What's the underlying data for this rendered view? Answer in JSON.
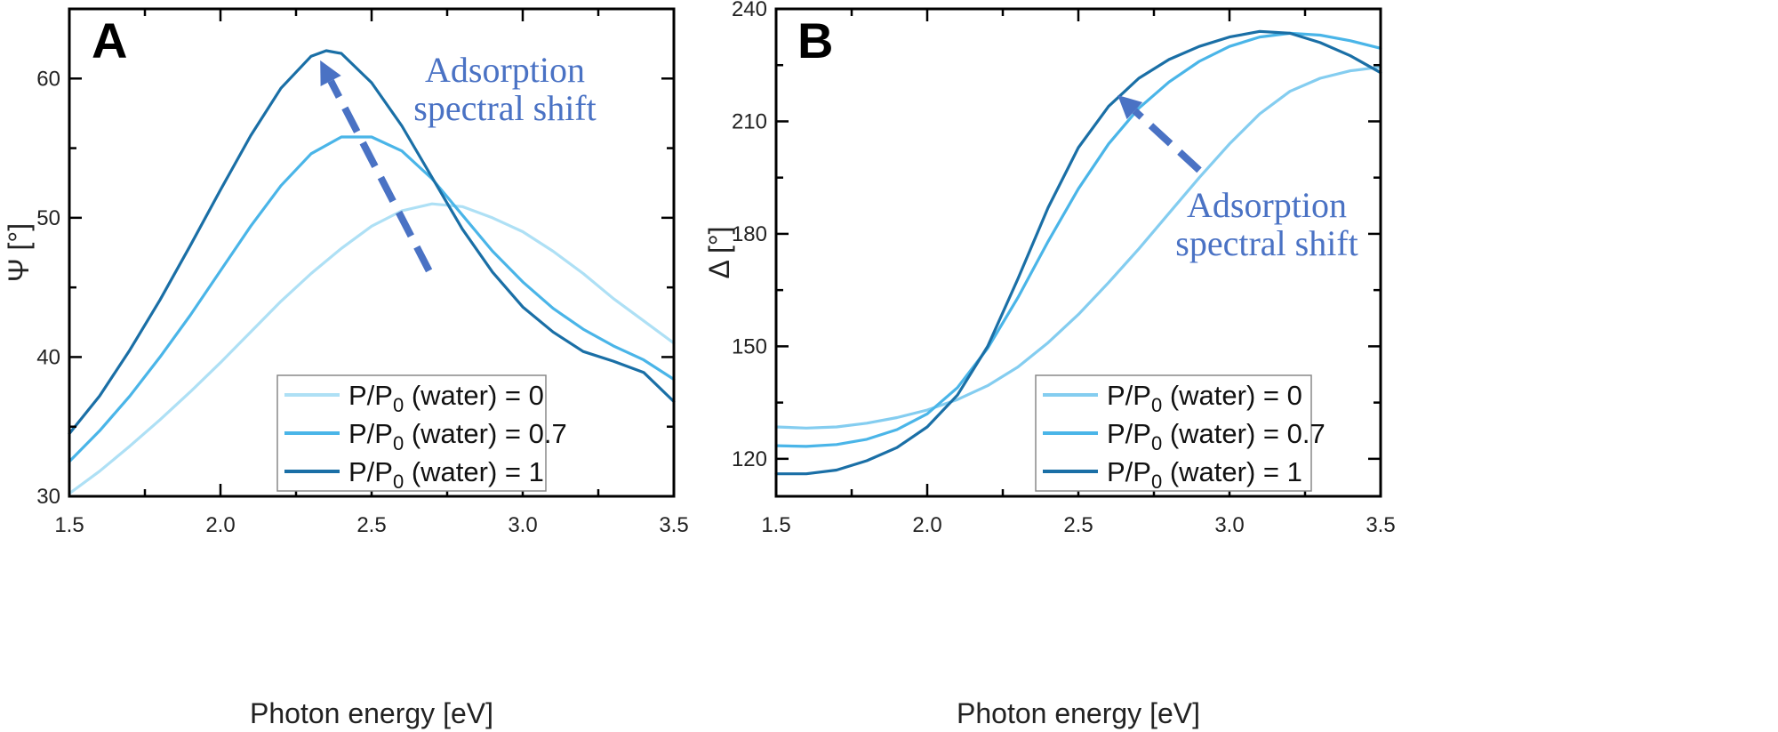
{
  "chart_data": [
    {
      "type": "line",
      "panel_label": "A",
      "xlabel": "Photon energy [eV]",
      "ylabel": "Ψ [°]",
      "xlim": [
        1.5,
        3.5
      ],
      "ylim": [
        30,
        65
      ],
      "xticks": [
        1.5,
        2.0,
        2.5,
        3.0,
        3.5
      ],
      "xtick_labels": [
        "1.5",
        "2.0",
        "2.5",
        "3.0",
        "3.5"
      ],
      "yticks": [
        30,
        40,
        50,
        60
      ],
      "ytick_labels": [
        "30",
        "40",
        "50",
        "60"
      ],
      "grid": false,
      "legend_position": "bottom-right",
      "annotation": {
        "lines": [
          "Adsorption",
          "spectral shift"
        ],
        "arrow_from": [
          2.69,
          46.2
        ],
        "arrow_to": [
          2.33,
          61.3
        ]
      },
      "series": [
        {
          "name_main": "P/P",
          "name_sub": "0",
          "name_rest": " (water) = 0",
          "color": "#aee0f5",
          "x": [
            1.5,
            1.6,
            1.7,
            1.8,
            1.9,
            2.0,
            2.1,
            2.2,
            2.3,
            2.4,
            2.5,
            2.6,
            2.7,
            2.8,
            2.9,
            3.0,
            3.1,
            3.2,
            3.3,
            3.4,
            3.5
          ],
          "y": [
            30.2,
            31.8,
            33.6,
            35.5,
            37.5,
            39.6,
            41.8,
            44.0,
            46.0,
            47.8,
            49.4,
            50.5,
            51.0,
            50.8,
            50.0,
            49.0,
            47.6,
            46.0,
            44.2,
            42.6,
            41.0
          ]
        },
        {
          "name_main": "P/P",
          "name_sub": "0",
          "name_rest": " (water) = 0.7",
          "color": "#4ab5e8",
          "x": [
            1.5,
            1.6,
            1.7,
            1.8,
            1.9,
            2.0,
            2.1,
            2.2,
            2.3,
            2.4,
            2.5,
            2.6,
            2.7,
            2.8,
            2.9,
            3.0,
            3.1,
            3.2,
            3.3,
            3.4,
            3.5
          ],
          "y": [
            32.5,
            34.7,
            37.2,
            40.0,
            43.0,
            46.2,
            49.4,
            52.3,
            54.6,
            55.8,
            55.8,
            54.8,
            52.8,
            50.2,
            47.6,
            45.4,
            43.5,
            42.0,
            40.8,
            39.8,
            38.4
          ]
        },
        {
          "name_main": "P/P",
          "name_sub": "0",
          "name_rest": " (water) = 1",
          "color": "#1a6fa6",
          "x": [
            1.5,
            1.6,
            1.7,
            1.8,
            1.9,
            2.0,
            2.1,
            2.2,
            2.3,
            2.35,
            2.4,
            2.5,
            2.6,
            2.7,
            2.8,
            2.9,
            3.0,
            3.1,
            3.2,
            3.3,
            3.4,
            3.5
          ],
          "y": [
            34.5,
            37.2,
            40.5,
            44.1,
            48.0,
            52.0,
            55.9,
            59.3,
            61.6,
            62.0,
            61.8,
            59.7,
            56.6,
            52.9,
            49.2,
            46.1,
            43.6,
            41.8,
            40.4,
            39.7,
            38.9,
            36.8
          ]
        }
      ]
    },
    {
      "type": "line",
      "panel_label": "B",
      "xlabel": "Photon energy [eV]",
      "ylabel": "Δ [°]",
      "xlim": [
        1.5,
        3.5
      ],
      "ylim": [
        110,
        240
      ],
      "xticks": [
        1.5,
        2.0,
        2.5,
        3.0,
        3.5
      ],
      "xtick_labels": [
        "1.5",
        "2.0",
        "2.5",
        "3.0",
        "3.5"
      ],
      "yticks": [
        120,
        150,
        180,
        210,
        240
      ],
      "ytick_labels": [
        "120",
        "150",
        "180",
        "210",
        "240"
      ],
      "grid": false,
      "legend_position": "bottom-right",
      "annotation": {
        "lines": [
          "Adsorption",
          "spectral shift"
        ],
        "arrow_from": [
          2.9,
          197
        ],
        "arrow_to": [
          2.63,
          217
        ]
      },
      "series": [
        {
          "name_main": "P/P",
          "name_sub": "0",
          "name_rest": " (water) = 0",
          "color": "#84cdf0",
          "x": [
            1.5,
            1.6,
            1.7,
            1.8,
            1.9,
            2.0,
            2.1,
            2.2,
            2.3,
            2.4,
            2.5,
            2.6,
            2.7,
            2.8,
            2.9,
            3.0,
            3.1,
            3.2,
            3.3,
            3.4,
            3.5
          ],
          "y": [
            128.5,
            128.2,
            128.5,
            129.5,
            131.0,
            133.0,
            135.8,
            139.5,
            144.5,
            151.0,
            158.5,
            167.0,
            176.0,
            185.5,
            195.0,
            204.0,
            212.0,
            218.0,
            221.5,
            223.5,
            224.5
          ]
        },
        {
          "name_main": "P/P",
          "name_sub": "0",
          "name_rest": " (water) = 0.7",
          "color": "#4ab5e8",
          "x": [
            1.5,
            1.6,
            1.7,
            1.8,
            1.9,
            2.0,
            2.1,
            2.2,
            2.3,
            2.4,
            2.5,
            2.6,
            2.7,
            2.8,
            2.9,
            3.0,
            3.1,
            3.2,
            3.3,
            3.4,
            3.5
          ],
          "y": [
            123.5,
            123.3,
            123.8,
            125.2,
            127.8,
            132.0,
            139.0,
            149.5,
            163.0,
            178.0,
            192.0,
            204.0,
            213.5,
            220.5,
            226.0,
            230.0,
            232.5,
            233.5,
            233.0,
            231.5,
            229.5
          ]
        },
        {
          "name_main": "P/P",
          "name_sub": "0",
          "name_rest": " (water) = 1",
          "color": "#1a6fa6",
          "x": [
            1.5,
            1.6,
            1.7,
            1.8,
            1.9,
            2.0,
            2.1,
            2.2,
            2.3,
            2.4,
            2.5,
            2.6,
            2.7,
            2.8,
            2.9,
            3.0,
            3.1,
            3.2,
            3.3,
            3.4,
            3.5
          ],
          "y": [
            116.0,
            116.0,
            117.0,
            119.5,
            123.0,
            128.5,
            137.0,
            150.0,
            168.0,
            187.0,
            203.0,
            214.0,
            221.5,
            226.5,
            230.0,
            232.5,
            234.0,
            233.5,
            231.0,
            227.5,
            223.0
          ]
        }
      ]
    }
  ]
}
